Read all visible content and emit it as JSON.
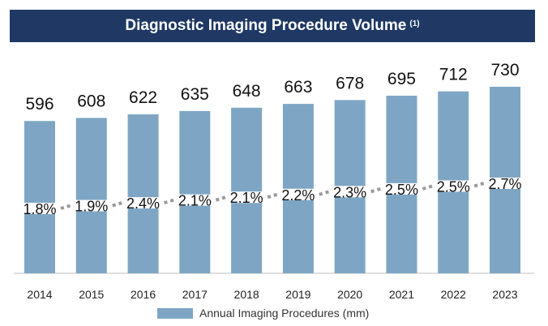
{
  "chart_data": {
    "type": "bar",
    "title": "Diagnostic Imaging Procedure Volume",
    "title_note": "(1)",
    "categories": [
      "2014",
      "2015",
      "2016",
      "2017",
      "2018",
      "2019",
      "2020",
      "2021",
      "2022",
      "2023"
    ],
    "series": [
      {
        "name": "Annual Imaging Procedures (mm)",
        "values": [
          596,
          608,
          622,
          635,
          648,
          663,
          678,
          695,
          712,
          730
        ]
      }
    ],
    "growth_labels": [
      "1.8%",
      "1.9%",
      "2.4%",
      "2.1%",
      "2.1%",
      "2.2%",
      "2.3%",
      "2.5%",
      "2.5%",
      "2.7%"
    ],
    "legend_position": "bottom",
    "colors": {
      "bar": "#7ea6c4",
      "title_bg": "#1f3864",
      "dots": "#9a9a9a",
      "axis": "#bfbfbf"
    }
  }
}
